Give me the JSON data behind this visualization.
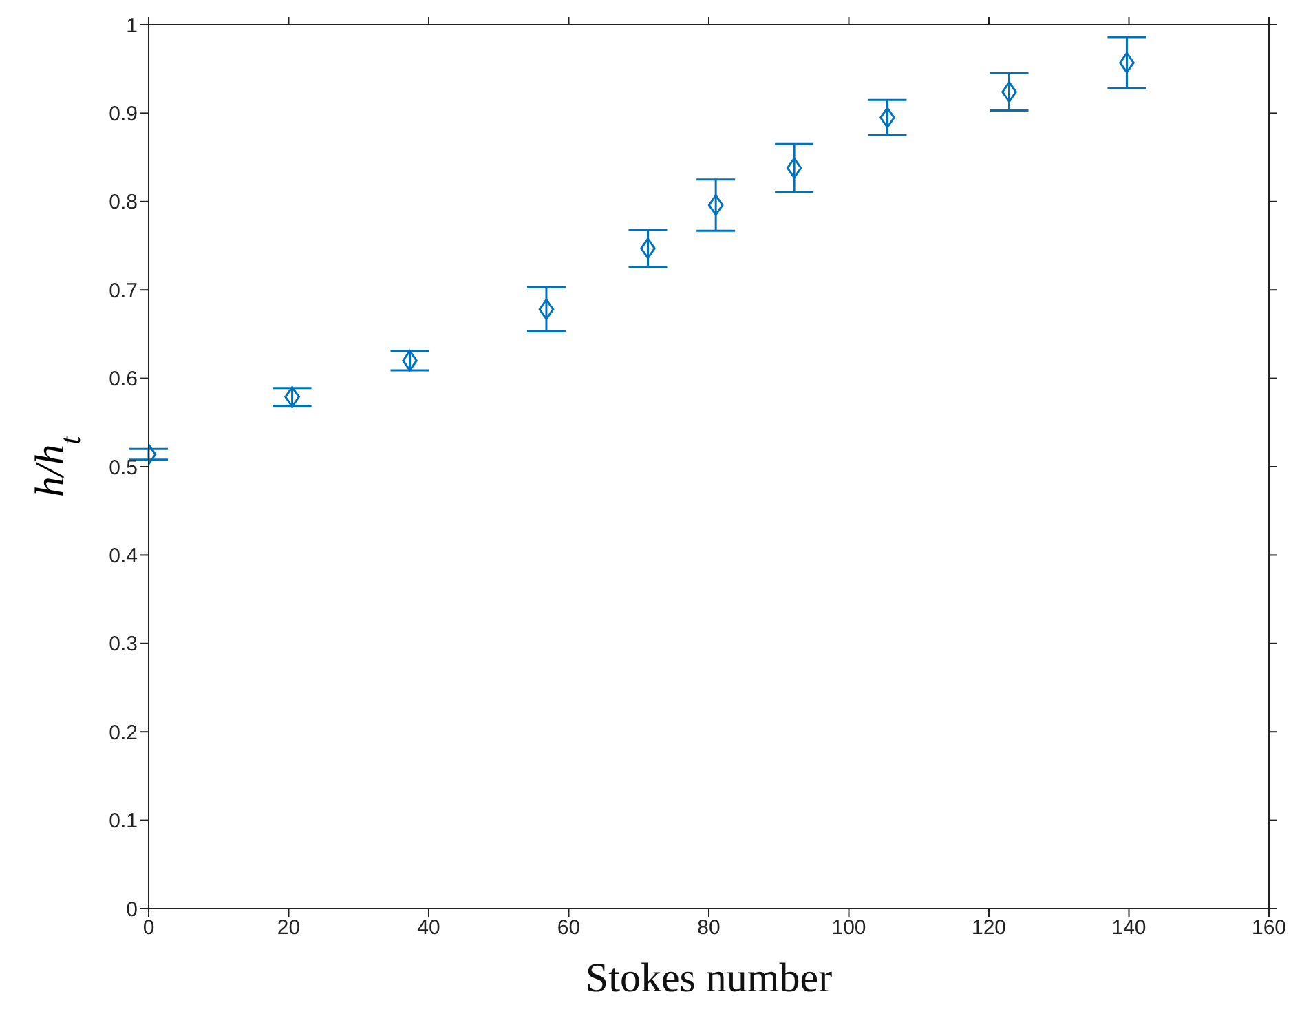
{
  "chart_data": {
    "type": "scatter",
    "xlabel": "Stokes number",
    "ylabel": "h/h$_{t}$",
    "x": [
      0,
      20.5,
      37.3,
      56.8,
      71.3,
      81,
      92.2,
      105.5,
      122.9,
      139.7
    ],
    "series": [
      {
        "color": "#0072bd",
        "values": [
          0.514,
          0.579,
          0.62,
          0.678,
          0.747,
          0.796,
          0.838,
          0.895,
          0.924,
          0.957
        ],
        "errors": [
          0.006,
          0.01,
          0.011,
          0.025,
          0.021,
          0.029,
          0.027,
          0.02,
          0.021,
          0.029
        ]
      }
    ],
    "marker": "diamond",
    "xlim": [
      0,
      160
    ],
    "xticks": [
      0,
      20,
      40,
      60,
      80,
      100,
      120,
      140,
      160
    ],
    "ylim": [
      0,
      1
    ],
    "yticks": [
      0,
      0.1,
      0.2,
      0.3,
      0.4,
      0.5,
      0.6,
      0.7,
      0.8,
      0.9,
      1
    ]
  }
}
